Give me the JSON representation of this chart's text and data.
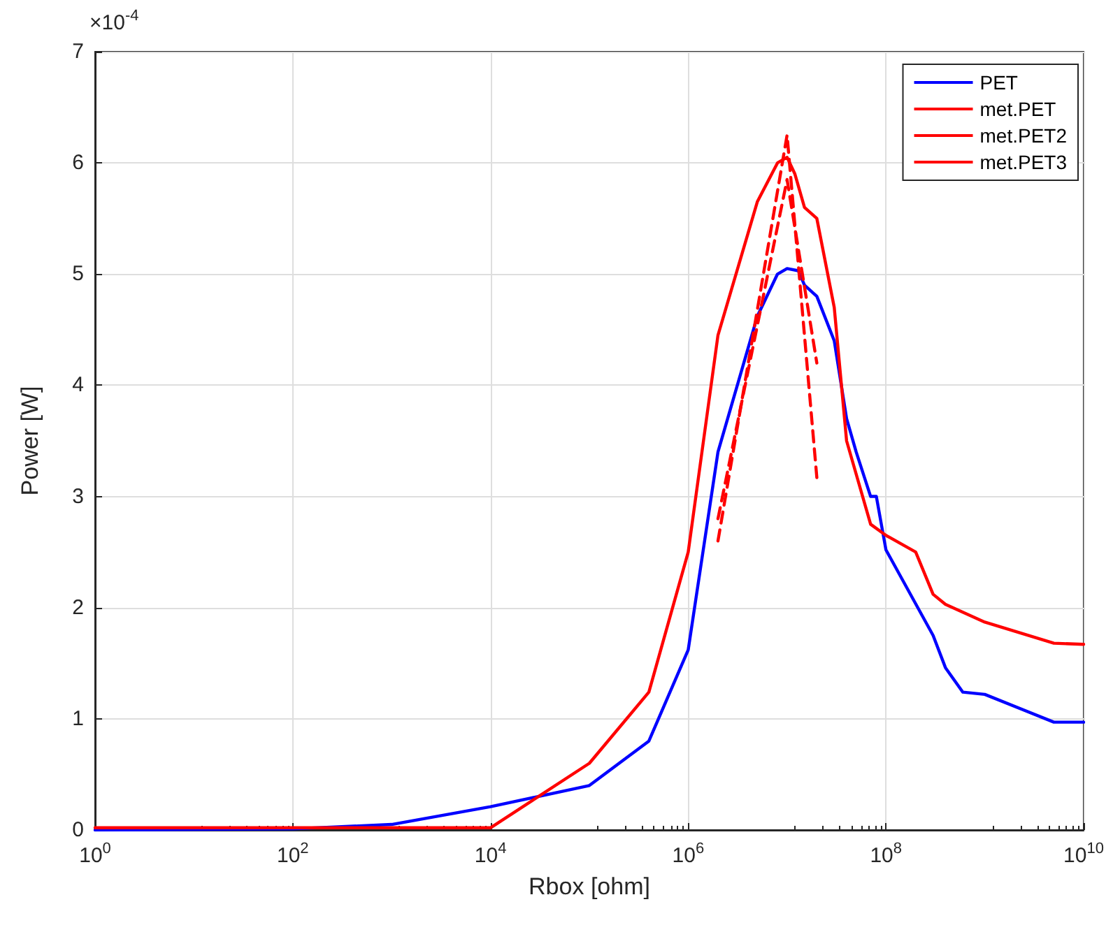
{
  "chart_data": {
    "type": "line",
    "xlabel": "Rbox [ohm]",
    "ylabel": "Power [W]",
    "annotations": [
      "×10$^{-4}$"
    ],
    "log": "x",
    "grid": true,
    "legend": "top right",
    "marker": "none",
    "xlim": [
      1,
      10000000000
    ],
    "xticks": [
      {
        "value": 1,
        "label": "10$^{0}$"
      },
      {
        "value": 100,
        "label": "10$^{2}$"
      },
      {
        "value": 10000,
        "label": "10$^{4}$"
      },
      {
        "value": 1000000,
        "label": "10$^{6}$"
      },
      {
        "value": 100000000,
        "label": "10$^{8}$"
      },
      {
        "value": 10000000000,
        "label": "10$^{10}$"
      }
    ],
    "ylim": [
      0,
      7
    ],
    "yticks": [
      0,
      1,
      2,
      3,
      4,
      5,
      6,
      7
    ],
    "series": [
      {
        "name": "PET",
        "color": "#0000ff",
        "line_style": "solid",
        "x": [
          1,
          100,
          1000,
          10000,
          100000,
          400000,
          1000000,
          2000000,
          5000000,
          8000000,
          10000000,
          13000000,
          15000000,
          20000000,
          30000000,
          40000000,
          50000000,
          70000000,
          80000000,
          100000000,
          300000000,
          400000000,
          600000000,
          1000000000,
          5000000000,
          10000000000
        ],
        "values": [
          0.0,
          0.01,
          0.05,
          0.21,
          0.4,
          0.8,
          1.62,
          3.4,
          4.62,
          5.0,
          5.05,
          5.03,
          4.9,
          4.8,
          4.4,
          3.7,
          3.4,
          3.0,
          3.0,
          2.52,
          1.75,
          1.46,
          1.24,
          1.22,
          0.97,
          0.97
        ]
      },
      {
        "name": "met.PET",
        "color": "#ff0000",
        "line_style": "solid",
        "x": [
          1,
          10000,
          100000,
          400000,
          1000000,
          2000000,
          5000000,
          8000000,
          10000000,
          12000000,
          15000000,
          20000000,
          30000000,
          40000000,
          70000000,
          100000000,
          200000000,
          300000000,
          400000000,
          1000000000,
          5000000000,
          10000000000
        ],
        "values": [
          0.02,
          0.02,
          0.6,
          1.24,
          2.5,
          4.45,
          5.65,
          6.0,
          6.05,
          5.9,
          5.6,
          5.5,
          4.7,
          3.5,
          2.75,
          2.65,
          2.5,
          2.12,
          2.03,
          1.87,
          1.68,
          1.67
        ]
      },
      {
        "name": "met.PET2",
        "color": "#ff0000",
        "line_style": "dashed",
        "x": [
          2000000,
          10000000,
          20000000
        ],
        "values": [
          2.6,
          6.25,
          3.17
        ]
      },
      {
        "name": "met.PET3",
        "color": "#ff0000",
        "line_style": "dashed",
        "x": [
          2000000,
          10000000,
          20000000
        ],
        "values": [
          2.8,
          5.85,
          4.2
        ]
      }
    ]
  }
}
